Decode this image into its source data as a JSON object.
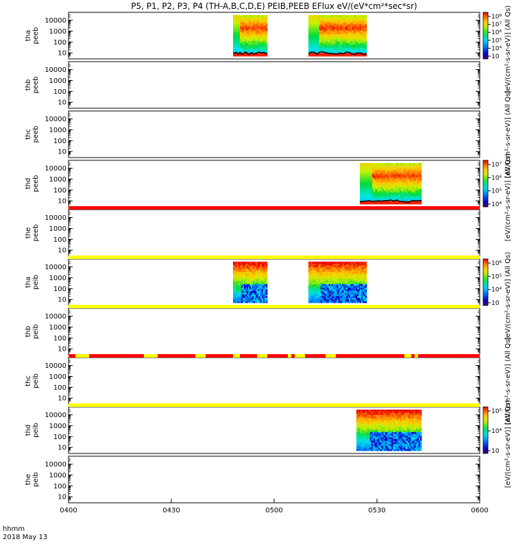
{
  "chart_data": {
    "type": "heatmap",
    "title": "P5, P1, P2, P3, P4 (TH-A,B,C,D,E) PEIB,PEEB EFlux eV/(eV*cm²*sec*sr)",
    "x_axis": {
      "label_line1": "hhmm",
      "label_line2": "2018 May 13",
      "ticks": [
        "0400",
        "0430",
        "0500",
        "0530",
        "0600"
      ],
      "range_minutes": [
        0,
        120
      ]
    },
    "y_axis": {
      "scale": "log",
      "unit": "eV",
      "range": [
        5,
        30000
      ],
      "ticks": [
        "10",
        "100",
        "1000",
        "10000"
      ]
    },
    "panels": [
      {
        "probe": "tha",
        "species": "peeb",
        "label_top": "tha",
        "label_bottom": "peeb",
        "segments": [
          [
            48,
            58
          ],
          [
            70,
            87
          ]
        ],
        "colorbar": {
          "label": "[eV/(cm²-s-sr-eV)] (All Qs)",
          "ticks": [
            "10⁸",
            "10⁷",
            "10⁶",
            "10⁵",
            "10⁴",
            "10⁳"
          ]
        }
      },
      {
        "probe": "thb",
        "species": "peeb",
        "label_top": "thb",
        "label_bottom": "peeb",
        "segments": []
      },
      {
        "probe": "thc",
        "species": "peeb",
        "label_top": "thc",
        "label_bottom": "peeb",
        "segments": []
      },
      {
        "probe": "thd",
        "species": "peeb",
        "label_top": "thd",
        "label_bottom": "peeb",
        "segments": [
          [
            85,
            103
          ]
        ],
        "colorbar": {
          "label": "[eV/(cm²-s-sr-eV)] (All Qs)",
          "ticks": [
            "10⁷",
            "10⁶",
            "10⁵",
            "10⁴"
          ]
        }
      },
      {
        "probe": "the",
        "species": "peeb",
        "label_top": "the",
        "label_bottom": "peeb",
        "segments": []
      },
      {
        "probe": "tha",
        "species": "peib",
        "label_top": "tha",
        "label_bottom": "peib",
        "segments": [
          [
            48,
            58
          ],
          [
            70,
            87
          ]
        ],
        "colorbar": {
          "label": "[eV/(cm²-s-sr-eV)] (All Qs)",
          "ticks": [
            "10⁶",
            "10⁵",
            "10⁴",
            "10⁳"
          ]
        }
      },
      {
        "probe": "thb",
        "species": "peib",
        "label_top": "thb",
        "label_bottom": "peib",
        "segments": []
      },
      {
        "probe": "thc",
        "species": "peib",
        "label_top": "thc",
        "label_bottom": "peib",
        "segments": []
      },
      {
        "probe": "thd",
        "species": "peib",
        "label_top": "thd",
        "label_bottom": "peib",
        "segments": [
          [
            84,
            103
          ]
        ],
        "colorbar": {
          "label": "[eV/(cm²-s-sr-eV)] (All Qs)",
          "ticks": [
            "10⁵",
            "10⁴",
            "10⁳"
          ]
        }
      },
      {
        "probe": "the",
        "species": "peib",
        "label_top": "the",
        "label_bottom": "peib",
        "segments": []
      }
    ],
    "colorbar_labels_extra": [
      "[eV/(cm²-s-sr-eV)] (All Qs)",
      "[eV/(cm²-s-sr-eV)] (All Qs)"
    ],
    "mode_bars": [
      {
        "after_panel": 4,
        "color": "#ff0000",
        "segments": [
          [
            0,
            120
          ]
        ]
      },
      {
        "after_panel": 5,
        "color": "#ffff00",
        "segments": [
          [
            0,
            120
          ]
        ]
      },
      {
        "after_panel": 6,
        "color": "#ffff00",
        "segments": [
          [
            0,
            120
          ]
        ]
      },
      {
        "after_panel": 7,
        "color": "#ff0000",
        "pattern": "mixed"
      },
      {
        "after_panel": 8,
        "color": "#ffff00",
        "segments": [
          [
            0,
            120
          ]
        ]
      }
    ]
  }
}
